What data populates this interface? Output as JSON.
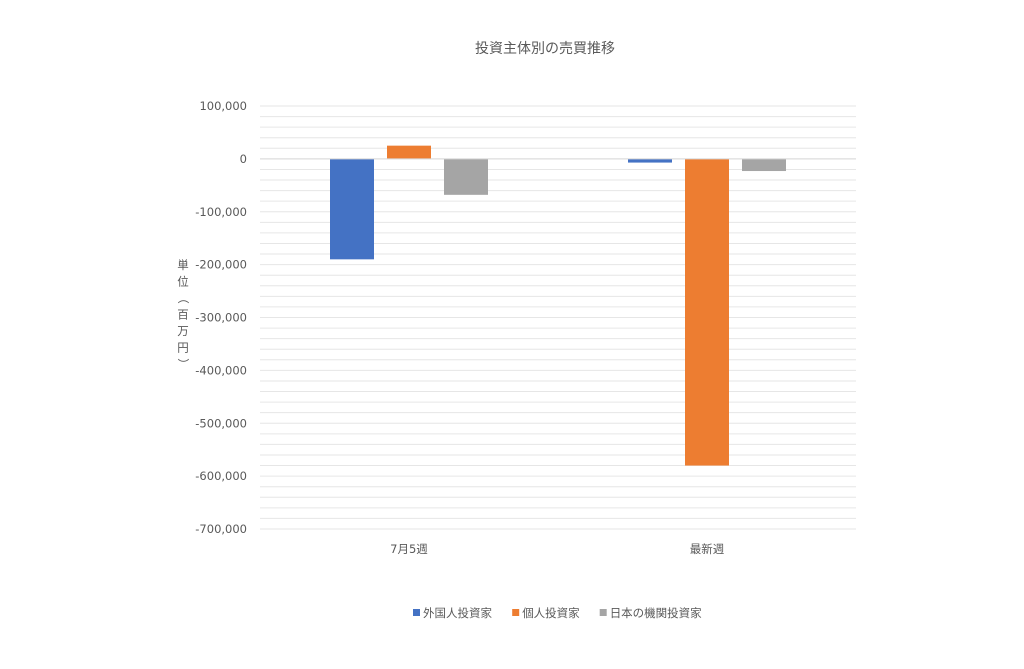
{
  "chart_data": {
    "type": "bar",
    "title": "投資主体別の売買推移",
    "ylabel": "単位（百万円）",
    "xlabel": "",
    "categories": [
      "7月5週",
      "最新週"
    ],
    "series": [
      {
        "name": "外国人投資家",
        "color": "#4472C4",
        "values": [
          -190000,
          -7000
        ]
      },
      {
        "name": "個人投資家",
        "color": "#ED7D31",
        "values": [
          25000,
          -580000
        ]
      },
      {
        "name": "日本の機関投資家",
        "color": "#A5A5A5",
        "values": [
          -68000,
          -23000
        ]
      }
    ],
    "ylim": [
      -700000,
      100000
    ],
    "yticks": [
      100000,
      0,
      -100000,
      -200000,
      -300000,
      -400000,
      -500000,
      -600000,
      -700000
    ],
    "ytick_labels": [
      "100,000",
      "0",
      "-100,000",
      "-200,000",
      "-300,000",
      "-400,000",
      "-500,000",
      "-600,000",
      "-700,000"
    ],
    "grid": true,
    "legend_position": "bottom"
  }
}
